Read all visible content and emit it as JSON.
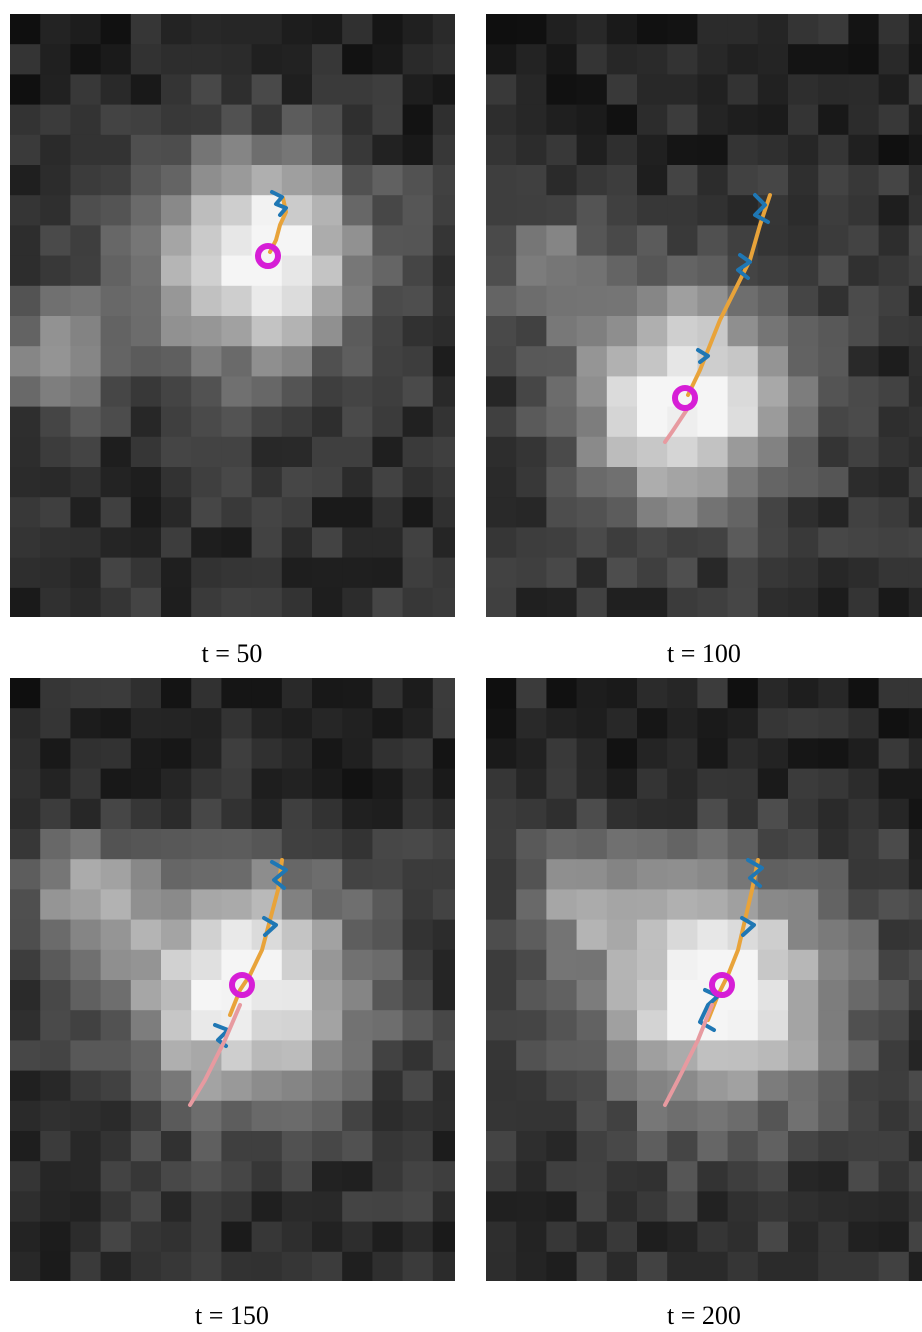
{
  "panels": [
    {
      "caption": "t = 50"
    },
    {
      "caption": "t = 100"
    },
    {
      "caption": "t = 150"
    },
    {
      "caption": "t = 200"
    }
  ]
}
